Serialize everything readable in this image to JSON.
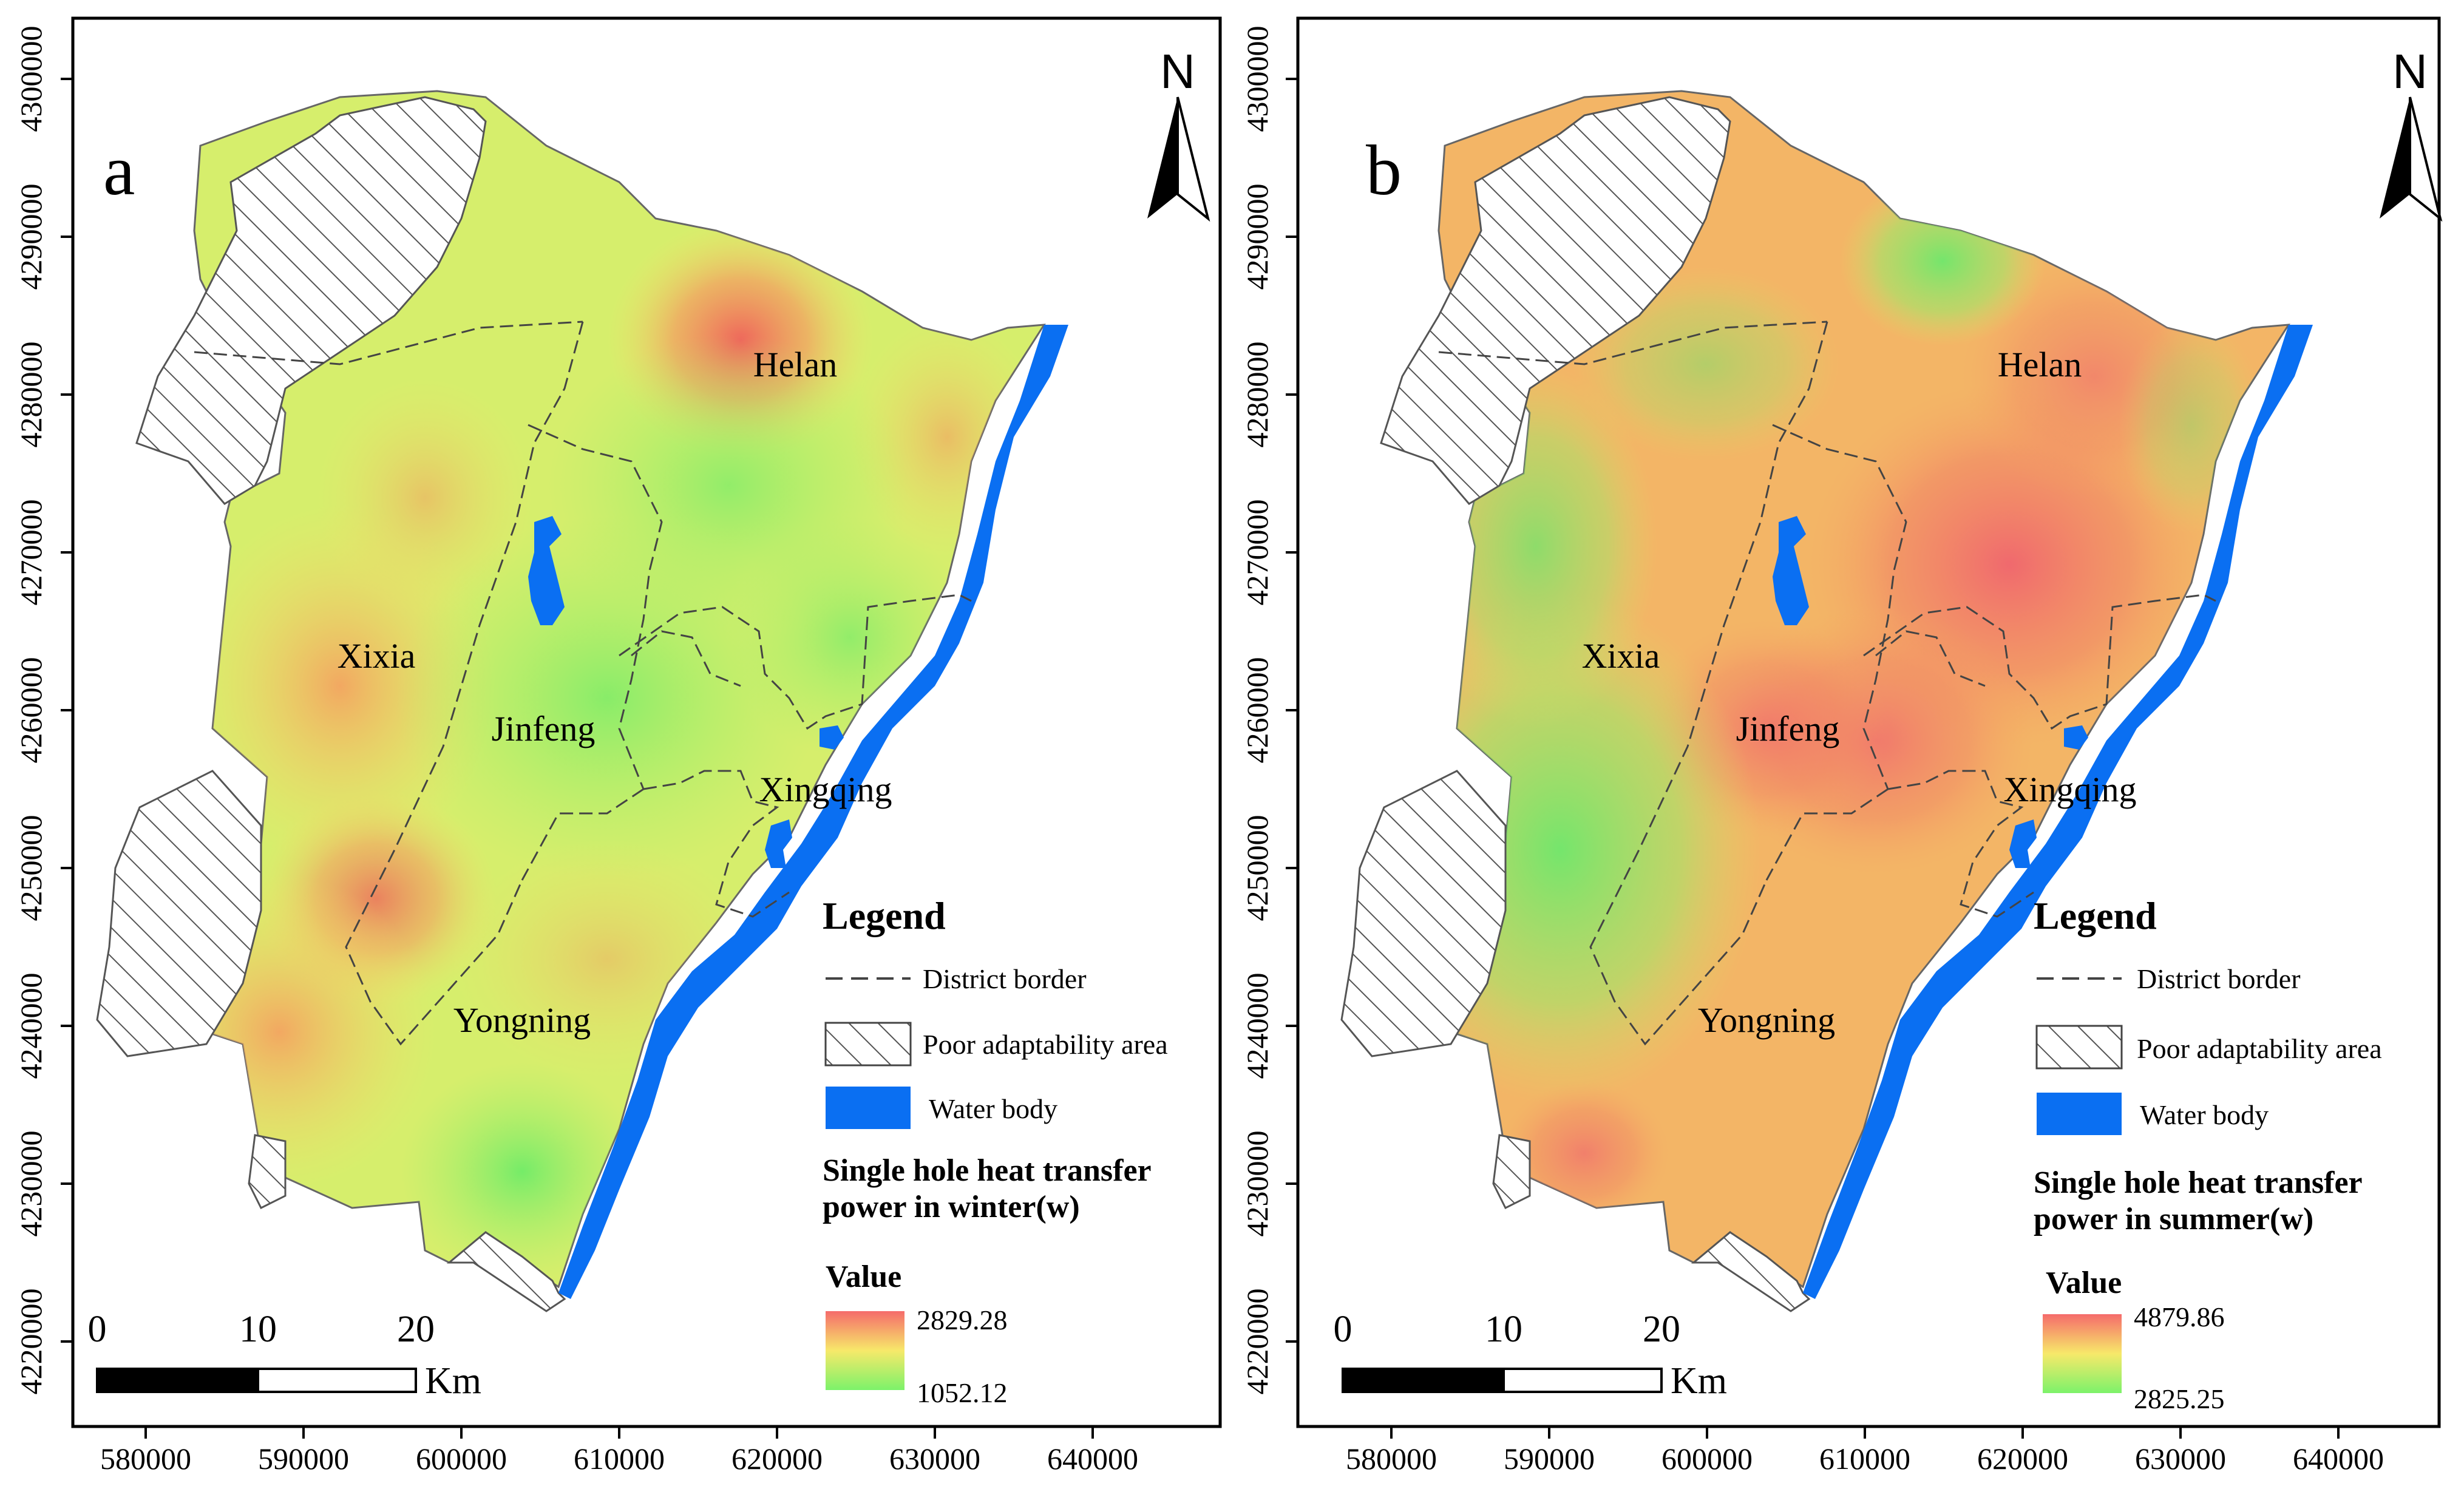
{
  "panels": [
    {
      "label": "a",
      "north": "N",
      "y_ticks": [
        "4300000",
        "4290000",
        "4280000",
        "4270000",
        "4260000",
        "4250000",
        "4240000",
        "4230000",
        "4220000"
      ],
      "x_ticks": [
        "580000",
        "590000",
        "600000",
        "610000",
        "620000",
        "630000",
        "640000"
      ],
      "districts": [
        "Helan",
        "Xixia",
        "Jinfeng",
        "Xingqing",
        "Yongning"
      ],
      "legend": {
        "title": "Legend",
        "district_border": "District border",
        "poor_area": "Poor adaptability area",
        "water_body": "Water body",
        "variable_line1": "Single hole heat transfer",
        "variable_line2": "power  in winter(w)",
        "value_label": "Value",
        "max": "2829.28",
        "min": "1052.12"
      },
      "scale": {
        "t0": "0",
        "t1": "10",
        "t2": "20",
        "unit": "Km"
      }
    },
    {
      "label": "b",
      "north": "N",
      "y_ticks": [
        "4300000",
        "4290000",
        "4280000",
        "4270000",
        "4260000",
        "4250000",
        "4240000",
        "4230000",
        "4220000"
      ],
      "x_ticks": [
        "580000",
        "590000",
        "600000",
        "610000",
        "620000",
        "630000",
        "640000"
      ],
      "districts": [
        "Helan",
        "Xixia",
        "Jinfeng",
        "Xingqing",
        "Yongning"
      ],
      "legend": {
        "title": "Legend",
        "district_border": "District border",
        "poor_area": "Poor adaptability area",
        "water_body": "Water body",
        "variable_line1": "Single hole heat transfer",
        "variable_line2": "power  in summer(w)",
        "value_label": "Value",
        "max": "4879.86",
        "min": "2825.25"
      },
      "scale": {
        "t0": "0",
        "t1": "10",
        "t2": "20",
        "unit": "Km"
      }
    }
  ],
  "colors": {
    "frame": "#000000",
    "water": "#0a6ff2",
    "ramp_high": "#f56b6b",
    "ramp_mid": "#f7e96a",
    "ramp_low": "#7cf26a",
    "base_a": "#cdee6e",
    "base_b": "#f5b868"
  }
}
